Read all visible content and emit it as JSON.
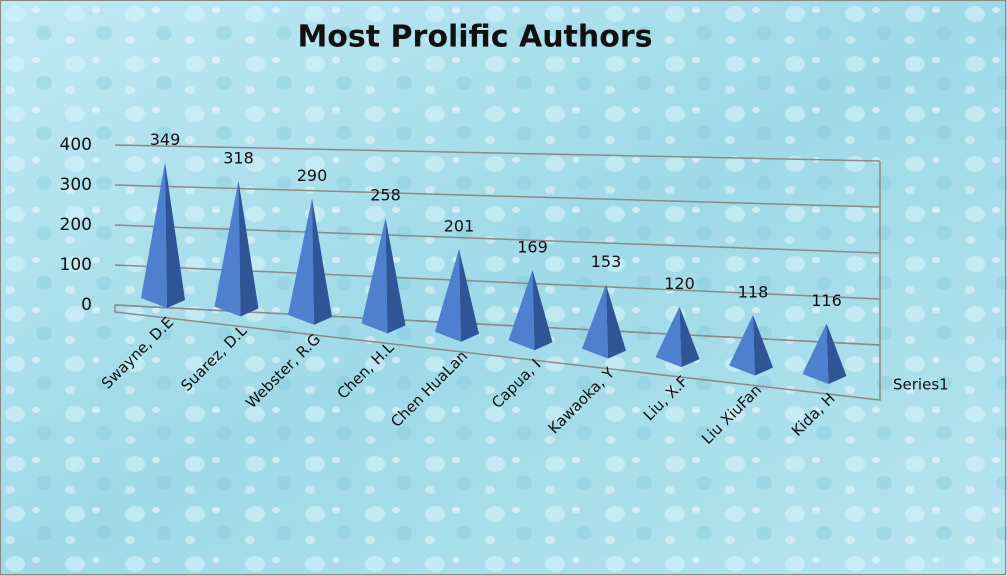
{
  "chart_data": {
    "type": "pyramid3d",
    "title": "Most Prolific Authors",
    "categories": [
      "Swayne, D.E",
      "Suarez, D.L",
      "Webster, R.G",
      "Chen, H.L",
      "Chen HuaLan",
      "Capua, I",
      "Kawaoka, Y",
      "Liu, X.F",
      "Liu XiuFan",
      "Kida, H"
    ],
    "series": [
      {
        "name": "Series1",
        "color": "#4f7fcf",
        "values": [
          349,
          318,
          290,
          258,
          201,
          169,
          153,
          120,
          118,
          116
        ]
      }
    ],
    "ylim": [
      0,
      400
    ],
    "yticks": [
      0,
      100,
      200,
      300,
      400
    ],
    "grid": true,
    "data_labels": true
  }
}
